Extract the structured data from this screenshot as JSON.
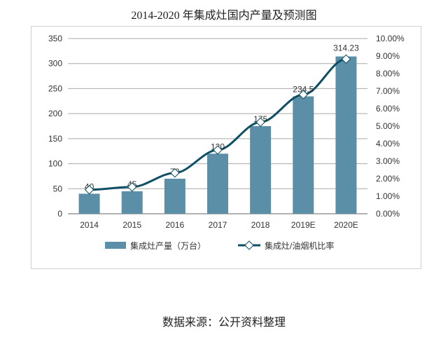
{
  "chart_data": {
    "type": "bar",
    "title": "2014-2020 年集成灶国内产量及预测图",
    "categories": [
      "2014",
      "2015",
      "2016",
      "2017",
      "2018",
      "2019E",
      "2020E"
    ],
    "series": [
      {
        "name": "集成灶产量（万台）",
        "type": "bar",
        "axis": "left",
        "values": [
          40,
          45,
          70,
          120,
          175,
          234.5,
          314.23
        ],
        "data_labels": [
          "40",
          "45",
          "70",
          "120",
          "175",
          "234.5",
          "314.23"
        ],
        "color": "#5b8fa8"
      },
      {
        "name": "集成灶/油烟机比率",
        "type": "line",
        "axis": "right",
        "values": [
          1.37,
          1.53,
          2.33,
          3.64,
          5.23,
          6.8,
          8.83
        ],
        "unit": "%",
        "color": "#0e4f66",
        "marker": "diamond"
      }
    ],
    "left_axis": {
      "ylim": [
        0,
        350
      ],
      "ticks": [
        "0",
        "50",
        "100",
        "150",
        "200",
        "250",
        "300",
        "350"
      ]
    },
    "right_axis": {
      "ylim": [
        0,
        10
      ],
      "ticks": [
        "0.00%",
        "1.00%",
        "2.00%",
        "3.00%",
        "4.00%",
        "5.00%",
        "6.00%",
        "7.00%",
        "8.00%",
        "9.00%",
        "10.00%"
      ]
    },
    "grid": true,
    "legend": "bottom"
  },
  "source": "数据来源：公开资料整理"
}
